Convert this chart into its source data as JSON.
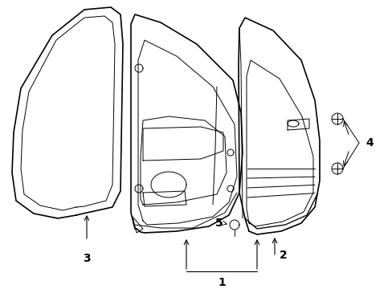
{
  "bg_color": "#ffffff",
  "line_color": "#000000",
  "lw": 1.2,
  "tlw": 0.7,
  "fig_width": 4.89,
  "fig_height": 3.6,
  "dpi": 100,
  "label_fontsize": 10
}
